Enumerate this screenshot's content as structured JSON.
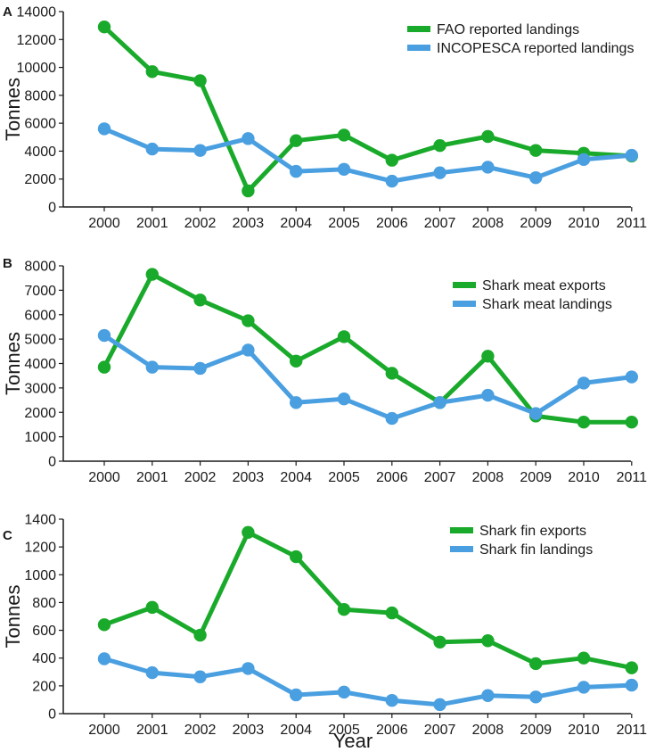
{
  "colors": {
    "green": "#1aaa2b",
    "blue": "#4a9fe0",
    "axis": "#1a1a1a"
  },
  "shared_xlabel": "Year",
  "chart_data": [
    {
      "type": "line",
      "panel_label": "A",
      "ylabel": "Tonnes",
      "x": [
        2000,
        2001,
        2002,
        2003,
        2004,
        2005,
        2006,
        2007,
        2008,
        2009,
        2010,
        2011
      ],
      "ylim": [
        0,
        14000
      ],
      "yticks": [
        0,
        2000,
        4000,
        6000,
        8000,
        10000,
        12000,
        14000
      ],
      "legend_position": "top-right",
      "series": [
        {
          "name": "FAO reported landings",
          "color": "#1aaa2b",
          "values": [
            12900,
            9700,
            9050,
            1150,
            4750,
            5150,
            3350,
            4400,
            5050,
            4050,
            3850,
            3650
          ]
        },
        {
          "name": "INCOPESCA reported landings",
          "color": "#4a9fe0",
          "values": [
            5600,
            4150,
            4050,
            4900,
            2550,
            2700,
            1850,
            2450,
            2850,
            2100,
            3400,
            3700
          ]
        }
      ]
    },
    {
      "type": "line",
      "panel_label": "B",
      "ylabel": "Tonnes",
      "x": [
        2000,
        2001,
        2002,
        2003,
        2004,
        2005,
        2006,
        2007,
        2008,
        2009,
        2010,
        2011
      ],
      "ylim": [
        0,
        8000
      ],
      "yticks": [
        0,
        1000,
        2000,
        3000,
        4000,
        5000,
        6000,
        7000,
        8000
      ],
      "legend_position": "top-right",
      "series": [
        {
          "name": "Shark meat exports",
          "color": "#1aaa2b",
          "values": [
            3850,
            7650,
            6600,
            5750,
            4100,
            5100,
            3600,
            2400,
            4300,
            1850,
            1600,
            1600
          ]
        },
        {
          "name": "Shark meat landings",
          "color": "#4a9fe0",
          "values": [
            5150,
            3850,
            3800,
            4550,
            2400,
            2550,
            1750,
            2400,
            2700,
            1950,
            3200,
            3450
          ]
        }
      ]
    },
    {
      "type": "line",
      "panel_label": "C",
      "ylabel": "Tonnes",
      "x": [
        2000,
        2001,
        2002,
        2003,
        2004,
        2005,
        2006,
        2007,
        2008,
        2009,
        2010,
        2011
      ],
      "ylim": [
        0,
        1400
      ],
      "yticks": [
        0,
        200,
        400,
        600,
        800,
        1000,
        1200,
        1400
      ],
      "legend_position": "top-right",
      "series": [
        {
          "name": "Shark fin exports",
          "color": "#1aaa2b",
          "values": [
            640,
            765,
            565,
            1305,
            1130,
            750,
            725,
            515,
            525,
            360,
            400,
            330
          ]
        },
        {
          "name": "Shark fin landings",
          "color": "#4a9fe0",
          "values": [
            395,
            295,
            265,
            325,
            135,
            155,
            95,
            65,
            130,
            120,
            190,
            205
          ]
        }
      ]
    }
  ]
}
